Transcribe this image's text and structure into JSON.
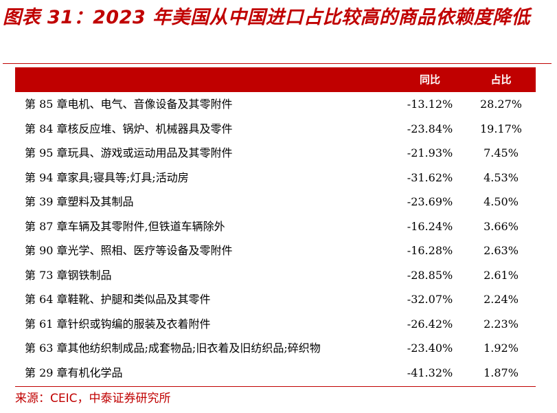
{
  "title": "图表 31：2023 年美国从中国进口占比较高的商品依赖度降低",
  "table": {
    "headers": {
      "name": "",
      "yoy": "同比",
      "share": "占比"
    },
    "rows": [
      {
        "name": "第 85 章电机、电气、音像设备及其零附件",
        "yoy": "-13.12%",
        "share": "28.27%"
      },
      {
        "name": "第 84 章核反应堆、锅炉、机械器具及零件",
        "yoy": "-23.84%",
        "share": "19.17%"
      },
      {
        "name": "第 95 章玩具、游戏或运动用品及其零附件",
        "yoy": "-21.93%",
        "share": "7.45%"
      },
      {
        "name": "第 94 章家具;寝具等;灯具;活动房",
        "yoy": "-31.62%",
        "share": "4.53%"
      },
      {
        "name": "第 39 章塑料及其制品",
        "yoy": "-23.69%",
        "share": "4.50%"
      },
      {
        "name": "第 87 章车辆及其零附件,但铁道车辆除外",
        "yoy": "-16.24%",
        "share": "3.66%"
      },
      {
        "name": "第 90 章光学、照相、医疗等设备及零附件",
        "yoy": "-16.28%",
        "share": "2.63%"
      },
      {
        "name": "第 73 章钢铁制品",
        "yoy": "-28.85%",
        "share": "2.61%"
      },
      {
        "name": "第 64 章鞋靴、护腿和类似品及其零件",
        "yoy": "-32.07%",
        "share": "2.24%"
      },
      {
        "name": "第 61 章针织或钩编的服装及衣着附件",
        "yoy": "-26.42%",
        "share": "2.23%"
      },
      {
        "name": "第 63 章其他纺织制成品;成套物品;旧衣着及旧纺织品;碎织物",
        "yoy": "-23.40%",
        "share": "1.92%"
      },
      {
        "name": "第 29 章有机化学品",
        "yoy": "-41.32%",
        "share": "1.87%"
      }
    ]
  },
  "source": "来源：CEIC，中泰证券研究所",
  "colors": {
    "accent": "#c00000",
    "text": "#000000",
    "header_text": "#ffffff"
  }
}
